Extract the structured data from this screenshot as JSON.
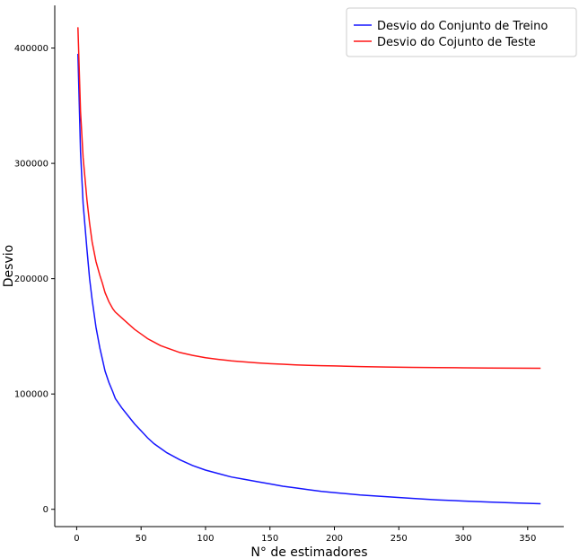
{
  "chart_data": {
    "type": "line",
    "xlabel": "N° de estimadores",
    "ylabel": "Desvio",
    "xlim": [
      -17,
      378
    ],
    "ylim": [
      -15000,
      437000
    ],
    "xticks": [
      0,
      50,
      100,
      150,
      200,
      250,
      300,
      350
    ],
    "yticks": [
      0,
      100000,
      200000,
      300000,
      400000
    ],
    "legend_position": "top-right",
    "grid": false,
    "series": [
      {
        "name": "Desvio do Conjunto de Treino",
        "color": "#1515ff",
        "x": [
          1,
          3,
          5,
          8,
          10,
          12,
          15,
          18,
          20,
          22,
          25,
          28,
          30,
          35,
          40,
          45,
          50,
          55,
          60,
          65,
          70,
          80,
          90,
          100,
          110,
          120,
          130,
          140,
          150,
          160,
          170,
          180,
          190,
          200,
          220,
          240,
          260,
          280,
          300,
          320,
          340,
          360
        ],
        "y": [
          395000,
          310000,
          265000,
          225000,
          200000,
          182000,
          158000,
          140000,
          130000,
          120000,
          110000,
          102000,
          96000,
          88000,
          81000,
          74000,
          68000,
          62000,
          57000,
          53000,
          49000,
          43000,
          38000,
          34000,
          31000,
          28000,
          26000,
          24000,
          22000,
          20000,
          18500,
          17000,
          15500,
          14500,
          12500,
          11000,
          9500,
          8200,
          7200,
          6300,
          5500,
          4800
        ]
      },
      {
        "name": "Desvio do Cojunto de Teste",
        "color": "#ff1515",
        "x": [
          1,
          3,
          5,
          8,
          10,
          12,
          15,
          18,
          20,
          22,
          25,
          28,
          30,
          35,
          40,
          45,
          50,
          55,
          60,
          65,
          70,
          80,
          90,
          100,
          110,
          120,
          130,
          140,
          150,
          160,
          170,
          180,
          190,
          200,
          220,
          240,
          260,
          280,
          300,
          320,
          340,
          360
        ],
        "y": [
          418000,
          345000,
          305000,
          268000,
          248000,
          232000,
          215000,
          203000,
          196000,
          188000,
          180000,
          174000,
          171000,
          166000,
          161000,
          156000,
          152000,
          148000,
          145000,
          142000,
          140000,
          136000,
          133500,
          131500,
          130000,
          128800,
          127800,
          127000,
          126300,
          125800,
          125300,
          124900,
          124600,
          124300,
          123800,
          123400,
          123100,
          122900,
          122700,
          122500,
          122400,
          122300
        ]
      }
    ]
  }
}
